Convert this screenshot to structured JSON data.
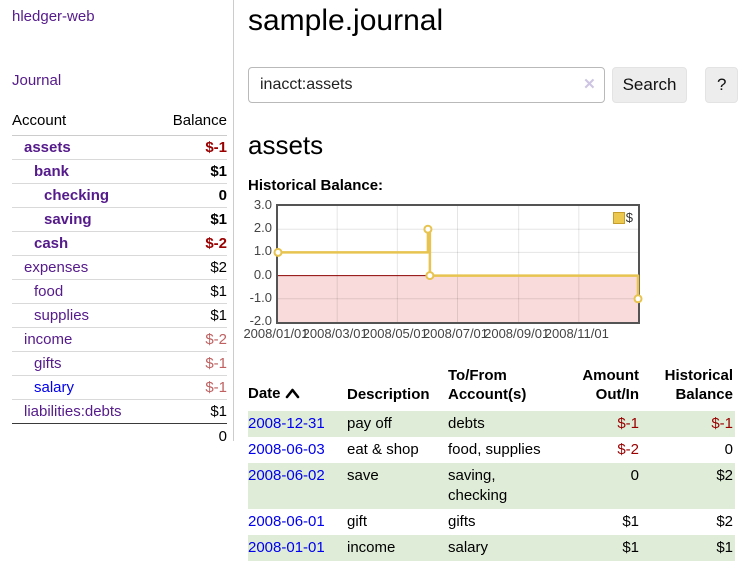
{
  "colors": {
    "link_purple": "#551A8B",
    "link_blue": "#0000EE",
    "negative_strong": "#990000",
    "negative_soft": "#bf6161",
    "row_green": "#dfecd8",
    "chart_line": "#E7C34F",
    "chart_negative_region": "#fadbdb",
    "chart_zero_line": "#8b0000"
  },
  "sidebar": {
    "brand": "hledger-web",
    "nav_journal": "Journal",
    "accounts_table": {
      "headers": {
        "account": "Account",
        "balance": "Balance"
      },
      "rows": [
        {
          "account": "assets",
          "indent": 1,
          "bold": true,
          "balance": "$-1",
          "balance_class": "neg"
        },
        {
          "account": "bank",
          "indent": 2,
          "bold": true,
          "balance": "$1",
          "balance_class": "pos"
        },
        {
          "account": "checking",
          "indent": 3,
          "bold": true,
          "balance": "0",
          "balance_class": "pos"
        },
        {
          "account": "saving",
          "indent": 3,
          "bold": true,
          "balance": "$1",
          "balance_class": "pos"
        },
        {
          "account": "cash",
          "indent": 2,
          "bold": true,
          "balance": "$-2",
          "balance_class": "neg"
        },
        {
          "account": "expenses",
          "indent": 1,
          "bold": false,
          "balance": "$2",
          "balance_class": "pos"
        },
        {
          "account": "food",
          "indent": 2,
          "bold": false,
          "balance": "$1",
          "balance_class": "pos"
        },
        {
          "account": "supplies",
          "indent": 2,
          "bold": false,
          "balance": "$1",
          "balance_class": "pos"
        },
        {
          "account": "income",
          "indent": 1,
          "bold": false,
          "balance": "$-2",
          "balance_class": "negsoft"
        },
        {
          "account": "gifts",
          "indent": 2,
          "bold": false,
          "balance": "$-1",
          "balance_class": "negsoft"
        },
        {
          "account": "salary",
          "indent": 2,
          "bold": false,
          "balance": "$-1",
          "balance_class": "negsoft",
          "link_color": "blue"
        },
        {
          "account": "liabilities:debts",
          "indent": 1,
          "bold": false,
          "balance": "$1",
          "balance_class": "pos"
        }
      ],
      "total": "0"
    }
  },
  "header": {
    "title": "sample.journal"
  },
  "search": {
    "query": "inacct:assets",
    "clear_icon": "✕",
    "button_label": "Search",
    "help_label": "?"
  },
  "account_page": {
    "heading": "assets"
  },
  "chart_data": {
    "type": "line",
    "style": "step",
    "title": "Historical Balance:",
    "legend": {
      "position": "top-right"
    },
    "series": [
      {
        "name": "$",
        "color": "#E7C34F",
        "points": [
          {
            "date": "2008-01-01",
            "value": 1
          },
          {
            "date": "2008-06-01",
            "value": 2
          },
          {
            "date": "2008-06-03",
            "value": 0
          },
          {
            "date": "2008-12-31",
            "value": -1
          }
        ]
      }
    ],
    "x_start": "2008-01-01",
    "x_end": "2008-12-31",
    "ylim": [
      -2,
      3
    ],
    "yticks": [
      3,
      2,
      1,
      0,
      -1,
      -2
    ],
    "xticks": [
      "2008/01/01",
      "2008/03/01",
      "2008/05/01",
      "2008/07/01",
      "2008/09/01",
      "2008/11/01"
    ],
    "grid": true,
    "negative_region_shaded": true
  },
  "register_table": {
    "headers": {
      "date": "Date",
      "description": "Description",
      "accounts": "To/From Account(s)",
      "amount": "Amount Out/In",
      "balance": "Historical Balance"
    },
    "rows": [
      {
        "date": "2008-12-31",
        "description": "pay off",
        "accounts": "debts",
        "amount": "$-1",
        "amount_class": "neg",
        "balance": "$-1",
        "balance_class": "neg"
      },
      {
        "date": "2008-06-03",
        "description": "eat & shop",
        "accounts": "food, supplies",
        "amount": "$-2",
        "amount_class": "neg",
        "balance": "0",
        "balance_class": "pos"
      },
      {
        "date": "2008-06-02",
        "description": "save",
        "accounts": "saving, checking",
        "amount": "0",
        "amount_class": "pos",
        "balance": "$2",
        "balance_class": "pos"
      },
      {
        "date": "2008-06-01",
        "description": "gift",
        "accounts": "gifts",
        "amount": "$1",
        "amount_class": "pos",
        "balance": "$2",
        "balance_class": "pos"
      },
      {
        "date": "2008-01-01",
        "description": "income",
        "accounts": "salary",
        "amount": "$1",
        "amount_class": "pos",
        "balance": "$1",
        "balance_class": "pos"
      }
    ]
  }
}
